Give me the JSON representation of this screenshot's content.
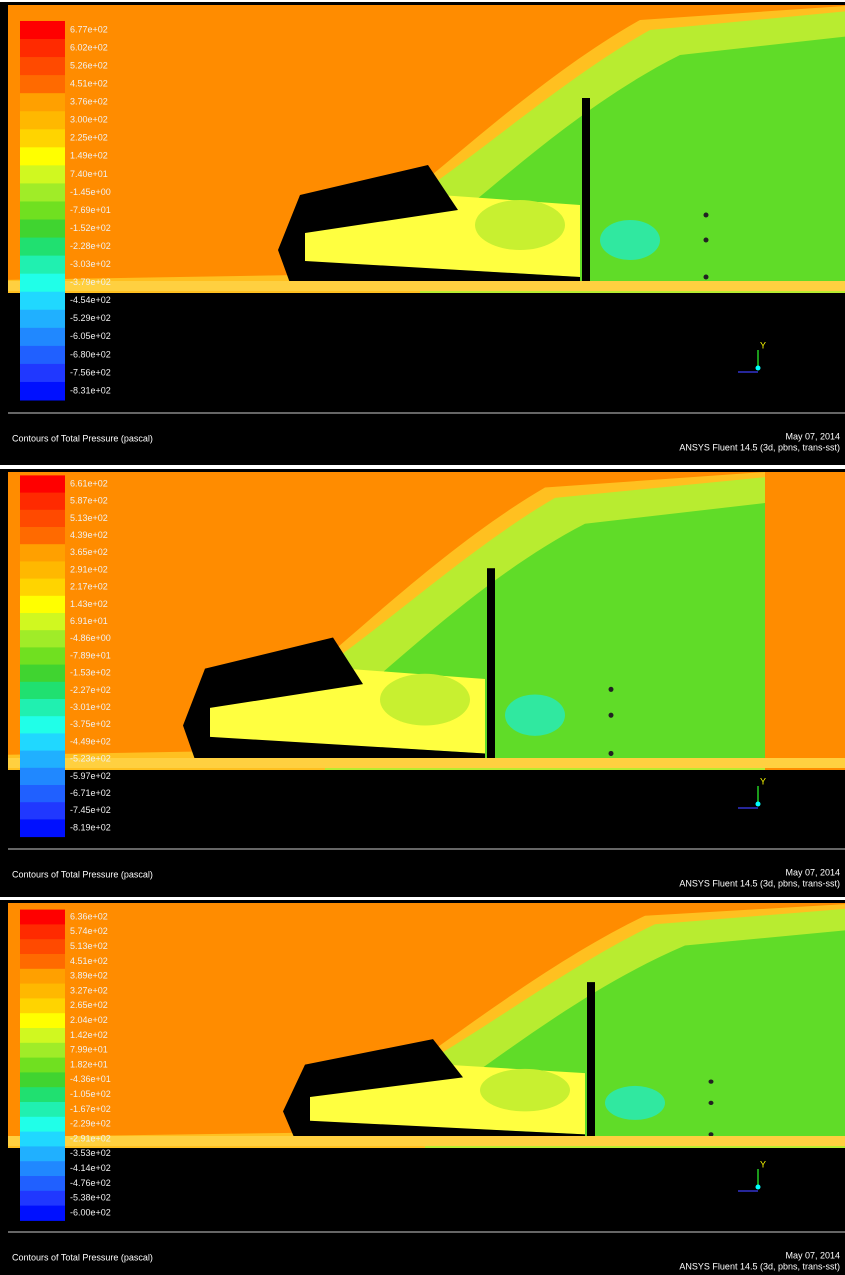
{
  "panels": [
    {
      "legend": [
        "6.77e+02",
        "6.02e+02",
        "5.26e+02",
        "4.51e+02",
        "3.76e+02",
        "3.00e+02",
        "2.25e+02",
        "1.49e+02",
        "7.40e+01",
        "-1.45e+00",
        "-7.69e+01",
        "-1.52e+02",
        "-2.28e+02",
        "-3.03e+02",
        "-3.79e+02",
        "-4.54e+02",
        "-5.29e+02",
        "-6.05e+02",
        "-6.80e+02",
        "-7.56e+02",
        "-8.31e+02"
      ],
      "axis_label": "Y",
      "caption": "Contours of Total Pressure (pascal)",
      "date": "May 07, 2014",
      "software": "ANSYS Fluent 14.5 (3d, pbns, trans-sst)"
    },
    {
      "legend": [
        "6.61e+02",
        "5.87e+02",
        "5.13e+02",
        "4.39e+02",
        "3.65e+02",
        "2.91e+02",
        "2.17e+02",
        "1.43e+02",
        "6.91e+01",
        "-4.86e+00",
        "-7.89e+01",
        "-1.53e+02",
        "-2.27e+02",
        "-3.01e+02",
        "-3.75e+02",
        "-4.49e+02",
        "-5.23e+02",
        "-5.97e+02",
        "-6.71e+02",
        "-7.45e+02",
        "-8.19e+02"
      ],
      "axis_label": "Y",
      "caption": "Contours of Total Pressure (pascal)",
      "date": "May 07, 2014",
      "software": "ANSYS Fluent 14.5 (3d, pbns, trans-sst)"
    },
    {
      "legend": [
        "6.36e+02",
        "5.74e+02",
        "5.13e+02",
        "4.51e+02",
        "3.89e+02",
        "3.27e+02",
        "2.65e+02",
        "2.04e+02",
        "1.42e+02",
        "7.99e+01",
        "1.82e+01",
        "-4.36e+01",
        "-1.05e+02",
        "-1.67e+02",
        "-2.29e+02",
        "-2.91e+02",
        "-3.53e+02",
        "-4.14e+02",
        "-4.76e+02",
        "-5.38e+02",
        "-6.00e+02"
      ],
      "axis_label": "Y",
      "caption": "Contours of Total Pressure (pascal)",
      "date": "May 07, 2014",
      "software": "ANSYS Fluent 14.5 (3d, pbns, trans-sst)"
    }
  ]
}
